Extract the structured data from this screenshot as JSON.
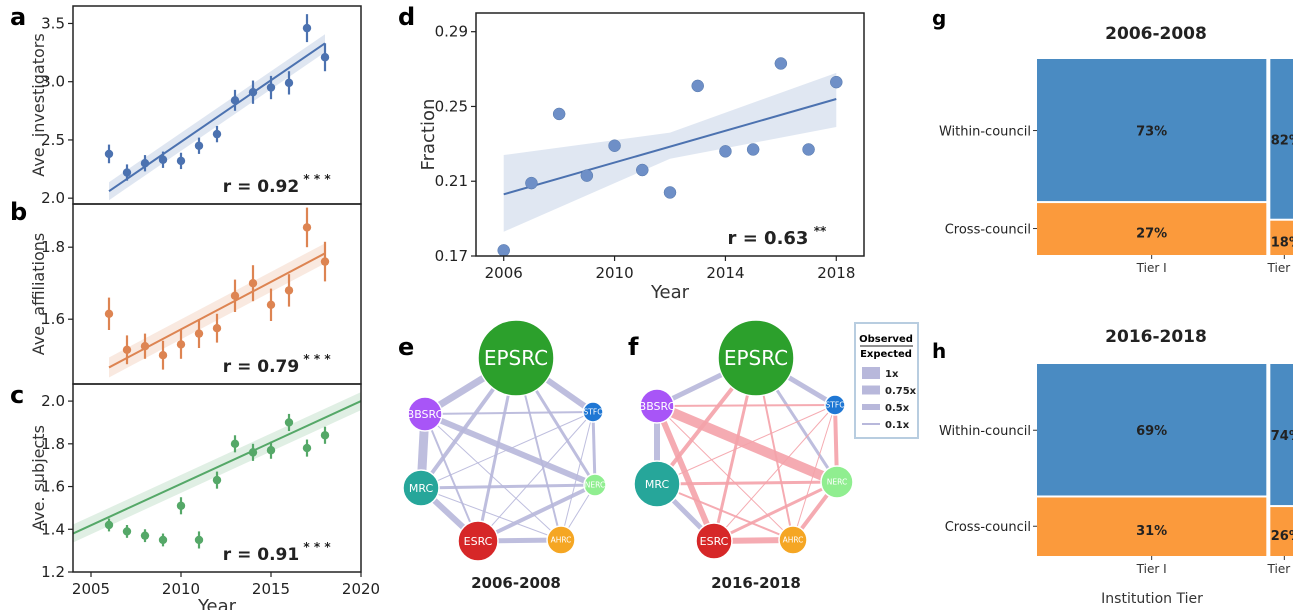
{
  "panel_letters": {
    "a": "a",
    "b": "b",
    "c": "c",
    "d": "d",
    "e": "e",
    "f": "f",
    "g": "g",
    "h": "h"
  },
  "colors": {
    "blue": "#4c72b0",
    "orange": "#dd8452",
    "green": "#55a868",
    "cell_blue": "#4a8bc2",
    "cell_orange": "#fb9a3c",
    "line_observed": "#b8b8db",
    "line_pink": "#f4a3aa",
    "EPSRC": "#2ca02c",
    "BBSRC": "#a855f7",
    "MRC": "#26a69a",
    "ESRC": "#d62728",
    "AHRC": "#f5a623",
    "NERC": "#90ee90",
    "STFC": "#1f77d4"
  },
  "chart_data": [
    {
      "id": "a",
      "type": "scatter",
      "ylabel": "Ave. investigators",
      "x": [
        2006,
        2007,
        2008,
        2009,
        2010,
        2011,
        2012,
        2013,
        2014,
        2015,
        2016,
        2017,
        2018
      ],
      "y": [
        2.38,
        2.22,
        2.3,
        2.33,
        2.32,
        2.45,
        2.55,
        2.84,
        2.91,
        2.95,
        2.99,
        3.46,
        3.21
      ],
      "err": [
        0.08,
        0.07,
        0.07,
        0.07,
        0.07,
        0.07,
        0.07,
        0.09,
        0.1,
        0.1,
        0.1,
        0.12,
        0.12
      ],
      "fit": [
        [
          2006,
          2.06
        ],
        [
          2018,
          3.33
        ]
      ],
      "yticks": [
        "2.0",
        "2.5",
        "3.0",
        "3.5"
      ],
      "ylim": [
        1.95,
        3.65
      ],
      "xlim": [
        2004,
        2020
      ],
      "r_text": "r = 0.92",
      "r_stars": "* * *"
    },
    {
      "id": "b",
      "type": "scatter",
      "ylabel": "Ave. affiliations",
      "x": [
        2006,
        2007,
        2008,
        2009,
        2010,
        2011,
        2012,
        2013,
        2014,
        2015,
        2016,
        2017,
        2018
      ],
      "y": [
        1.615,
        1.515,
        1.525,
        1.5,
        1.53,
        1.56,
        1.575,
        1.665,
        1.7,
        1.64,
        1.68,
        1.855,
        1.76
      ],
      "err": [
        0.045,
        0.04,
        0.035,
        0.04,
        0.04,
        0.04,
        0.04,
        0.045,
        0.05,
        0.045,
        0.045,
        0.055,
        0.055
      ],
      "fit": [
        [
          2006,
          1.466
        ],
        [
          2018,
          1.783
        ]
      ],
      "yticks": [
        "1.6",
        "1.8"
      ],
      "ylim": [
        1.42,
        1.92
      ],
      "xlim": [
        2004,
        2020
      ],
      "r_text": "r = 0.79",
      "r_stars": "* * *"
    },
    {
      "id": "c",
      "type": "scatter",
      "ylabel": "Ave. subjects",
      "xlabel": "Year",
      "x": [
        2006,
        2007,
        2008,
        2009,
        2010,
        2011,
        2012,
        2013,
        2014,
        2015,
        2016,
        2017,
        2018
      ],
      "y": [
        1.42,
        1.39,
        1.37,
        1.35,
        1.51,
        1.35,
        1.63,
        1.8,
        1.76,
        1.77,
        1.9,
        1.78,
        1.84
      ],
      "err": [
        0.03,
        0.03,
        0.03,
        0.03,
        0.04,
        0.04,
        0.04,
        0.04,
        0.04,
        0.04,
        0.04,
        0.04,
        0.04
      ],
      "fit": [
        [
          2004,
          1.38
        ],
        [
          2020,
          2.0
        ]
      ],
      "yticks": [
        "1.2",
        "1.4",
        "1.6",
        "1.8",
        "2.0"
      ],
      "ylim": [
        1.2,
        2.08
      ],
      "xticks": [
        "2005",
        "2010",
        "2015",
        "2020"
      ],
      "xlim": [
        2004,
        2020
      ],
      "r_text": "r = 0.91",
      "r_stars": "* * *"
    },
    {
      "id": "d",
      "type": "scatter",
      "ylabel": "Fraction",
      "xlabel": "Year",
      "x": [
        2006,
        2007,
        2008,
        2009,
        2010,
        2011,
        2012,
        2013,
        2014,
        2015,
        2016,
        2017,
        2018
      ],
      "y": [
        0.173,
        0.209,
        0.246,
        0.213,
        0.229,
        0.216,
        0.204,
        0.261,
        0.226,
        0.227,
        0.273,
        0.227,
        0.263
      ],
      "fit": [
        [
          2006,
          0.203
        ],
        [
          2018,
          0.254
        ]
      ],
      "ci_lower": [
        [
          2006,
          0.183
        ],
        [
          2012,
          0.222
        ],
        [
          2018,
          0.239
        ]
      ],
      "ci_upper": [
        [
          2006,
          0.224
        ],
        [
          2012,
          0.236
        ],
        [
          2018,
          0.268
        ]
      ],
      "yticks": [
        "0.17",
        "0.21",
        "0.25",
        "0.29"
      ],
      "ylim": [
        0.17,
        0.3
      ],
      "xticks": [
        "2006",
        "2010",
        "2014",
        "2018"
      ],
      "xlim": [
        2005,
        2019
      ],
      "r_text": "r = 0.63",
      "r_stars": "**"
    }
  ],
  "networks": [
    {
      "id": "e",
      "caption": "2006-2008",
      "nodes": [
        {
          "name": "EPSRC",
          "r": 38
        },
        {
          "name": "BBSRC",
          "r": 17
        },
        {
          "name": "STFC",
          "r": 10
        },
        {
          "name": "MRC",
          "r": 18
        },
        {
          "name": "NERC",
          "r": 11
        },
        {
          "name": "ESRC",
          "r": 20
        },
        {
          "name": "AHRC",
          "r": 14
        }
      ],
      "edges": [
        {
          "a": "EPSRC",
          "b": "BBSRC",
          "w": 7,
          "c": "observed"
        },
        {
          "a": "EPSRC",
          "b": "STFC",
          "w": 6,
          "c": "observed"
        },
        {
          "a": "EPSRC",
          "b": "MRC",
          "w": 4,
          "c": "observed"
        },
        {
          "a": "EPSRC",
          "b": "NERC",
          "w": 3,
          "c": "observed"
        },
        {
          "a": "EPSRC",
          "b": "ESRC",
          "w": 3,
          "c": "observed"
        },
        {
          "a": "EPSRC",
          "b": "AHRC",
          "w": 2,
          "c": "observed"
        },
        {
          "a": "BBSRC",
          "b": "MRC",
          "w": 9,
          "c": "observed"
        },
        {
          "a": "BBSRC",
          "b": "NERC",
          "w": 6,
          "c": "observed"
        },
        {
          "a": "BBSRC",
          "b": "STFC",
          "w": 2,
          "c": "observed"
        },
        {
          "a": "BBSRC",
          "b": "ESRC",
          "w": 2,
          "c": "observed"
        },
        {
          "a": "BBSRC",
          "b": "AHRC",
          "w": 1,
          "c": "observed"
        },
        {
          "a": "MRC",
          "b": "ESRC",
          "w": 6,
          "c": "observed"
        },
        {
          "a": "MRC",
          "b": "NERC",
          "w": 3,
          "c": "observed"
        },
        {
          "a": "MRC",
          "b": "STFC",
          "w": 1,
          "c": "observed"
        },
        {
          "a": "MRC",
          "b": "AHRC",
          "w": 1,
          "c": "observed"
        },
        {
          "a": "ESRC",
          "b": "AHRC",
          "w": 5,
          "c": "observed"
        },
        {
          "a": "ESRC",
          "b": "NERC",
          "w": 4,
          "c": "observed"
        },
        {
          "a": "ESRC",
          "b": "STFC",
          "w": 1,
          "c": "observed"
        },
        {
          "a": "NERC",
          "b": "STFC",
          "w": 3,
          "c": "observed"
        },
        {
          "a": "NERC",
          "b": "AHRC",
          "w": 1,
          "c": "observed"
        },
        {
          "a": "AHRC",
          "b": "STFC",
          "w": 1,
          "c": "observed"
        }
      ]
    },
    {
      "id": "f",
      "caption": "2016-2018",
      "nodes": [
        {
          "name": "EPSRC",
          "r": 38
        },
        {
          "name": "BBSRC",
          "r": 17
        },
        {
          "name": "STFC",
          "r": 10
        },
        {
          "name": "MRC",
          "r": 23
        },
        {
          "name": "NERC",
          "r": 16
        },
        {
          "name": "ESRC",
          "r": 18
        },
        {
          "name": "AHRC",
          "r": 14
        }
      ],
      "edges": [
        {
          "a": "EPSRC",
          "b": "BBSRC",
          "w": 5,
          "c": "observed"
        },
        {
          "a": "EPSRC",
          "b": "STFC",
          "w": 5,
          "c": "observed"
        },
        {
          "a": "EPSRC",
          "b": "MRC",
          "w": 4,
          "c": "pink"
        },
        {
          "a": "EPSRC",
          "b": "NERC",
          "w": 3,
          "c": "observed"
        },
        {
          "a": "EPSRC",
          "b": "ESRC",
          "w": 3,
          "c": "pink"
        },
        {
          "a": "EPSRC",
          "b": "AHRC",
          "w": 2,
          "c": "pink"
        },
        {
          "a": "BBSRC",
          "b": "MRC",
          "w": 6,
          "c": "observed"
        },
        {
          "a": "BBSRC",
          "b": "NERC",
          "w": 10,
          "c": "pink"
        },
        {
          "a": "BBSRC",
          "b": "ESRC",
          "w": 6,
          "c": "pink"
        },
        {
          "a": "BBSRC",
          "b": "STFC",
          "w": 2,
          "c": "pink"
        },
        {
          "a": "BBSRC",
          "b": "AHRC",
          "w": 1,
          "c": "pink"
        },
        {
          "a": "MRC",
          "b": "ESRC",
          "w": 5,
          "c": "observed"
        },
        {
          "a": "MRC",
          "b": "NERC",
          "w": 3,
          "c": "pink"
        },
        {
          "a": "MRC",
          "b": "STFC",
          "w": 1,
          "c": "pink"
        },
        {
          "a": "MRC",
          "b": "AHRC",
          "w": 2,
          "c": "pink"
        },
        {
          "a": "ESRC",
          "b": "AHRC",
          "w": 6,
          "c": "pink"
        },
        {
          "a": "ESRC",
          "b": "NERC",
          "w": 3,
          "c": "pink"
        },
        {
          "a": "ESRC",
          "b": "STFC",
          "w": 1,
          "c": "pink"
        },
        {
          "a": "NERC",
          "b": "STFC",
          "w": 4,
          "c": "pink"
        },
        {
          "a": "NERC",
          "b": "AHRC",
          "w": 4,
          "c": "pink"
        },
        {
          "a": "AHRC",
          "b": "STFC",
          "w": 1,
          "c": "pink"
        }
      ]
    }
  ],
  "net_legend": {
    "title_top": "Observed",
    "title_bottom": "Expected",
    "items": [
      {
        "label": "1x",
        "w": 12
      },
      {
        "label": "0.75x",
        "w": 9
      },
      {
        "label": "0.5x",
        "w": 6
      },
      {
        "label": "0.1x",
        "w": 2
      }
    ]
  },
  "mosaics": [
    {
      "id": "g",
      "title": "2006-2008",
      "tiers": [
        {
          "label": "Tier I",
          "share": 0.91,
          "within": 0.73,
          "within_label": "73%",
          "cross_label": "27%"
        },
        {
          "label": "Tier II",
          "share": 0.09,
          "within": 0.82,
          "within_label": "82%",
          "cross_label": "18%"
        }
      ],
      "rows": [
        "Within-council",
        "Cross-council"
      ]
    },
    {
      "id": "h",
      "title": "2016-2018",
      "tiers": [
        {
          "label": "Tier I",
          "share": 0.91,
          "within": 0.69,
          "within_label": "69%",
          "cross_label": "31%"
        },
        {
          "label": "Tier II",
          "share": 0.09,
          "within": 0.74,
          "within_label": "74%",
          "cross_label": "26%"
        }
      ],
      "rows": [
        "Within-council",
        "Cross-council"
      ]
    }
  ],
  "mosaic_xlabel": "Institution Tier"
}
